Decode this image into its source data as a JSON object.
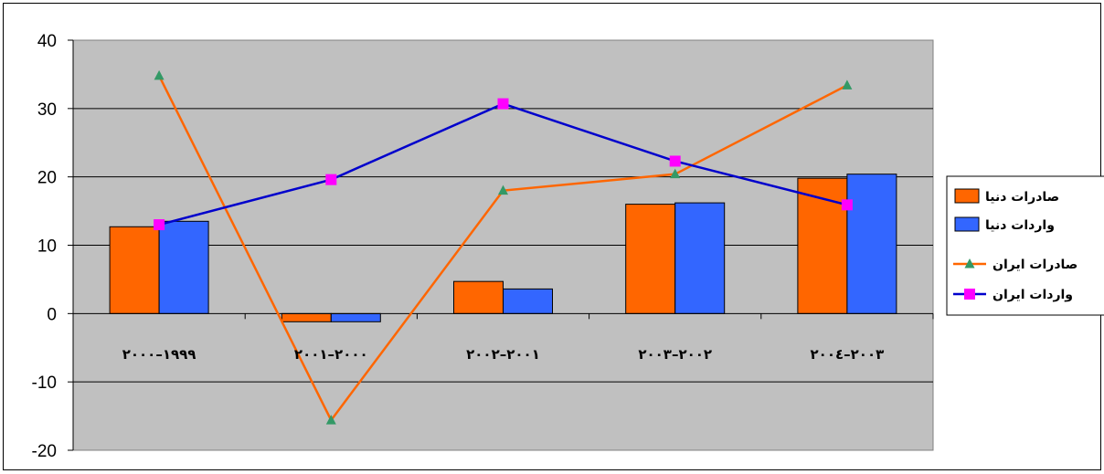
{
  "chart_data": {
    "type": "bar",
    "categories": [
      "١٩٩٩–٢٠٠٠",
      "٢٠٠٠–٢٠٠١",
      "٢٠٠١–٢٠٠٢",
      "٢٠٠٢–٢٠٠٣",
      "٢٠٠٣–٢٠٠٤"
    ],
    "series": [
      {
        "name": "صادرات دنیا",
        "kind": "bar",
        "color": "#ff6600",
        "values": [
          12.7,
          -1.2,
          4.7,
          16.0,
          19.8
        ]
      },
      {
        "name": "واردات دنیا",
        "kind": "bar",
        "color": "#3366ff",
        "values": [
          13.5,
          -1.2,
          3.6,
          16.2,
          20.4
        ]
      },
      {
        "name": "صادرات ایران",
        "kind": "line",
        "color": "#ff6600",
        "marker": "triangle",
        "marker_color": "#339966",
        "values": [
          34.8,
          -15.6,
          18.0,
          20.4,
          33.4
        ]
      },
      {
        "name": "واردات ایران",
        "kind": "line",
        "color": "#0000cc",
        "marker": "square",
        "marker_color": "#ff00ff",
        "values": [
          13.0,
          19.6,
          30.7,
          22.3,
          15.9
        ]
      }
    ],
    "yticks": [
      "40",
      "30",
      "20",
      "10",
      "0",
      "-10",
      "-20"
    ],
    "ylim": [
      -20,
      40
    ],
    "grid": true,
    "plot_background": "#c0c0c0",
    "legend_position": "right",
    "title": "",
    "xlabel": "",
    "ylabel": ""
  }
}
